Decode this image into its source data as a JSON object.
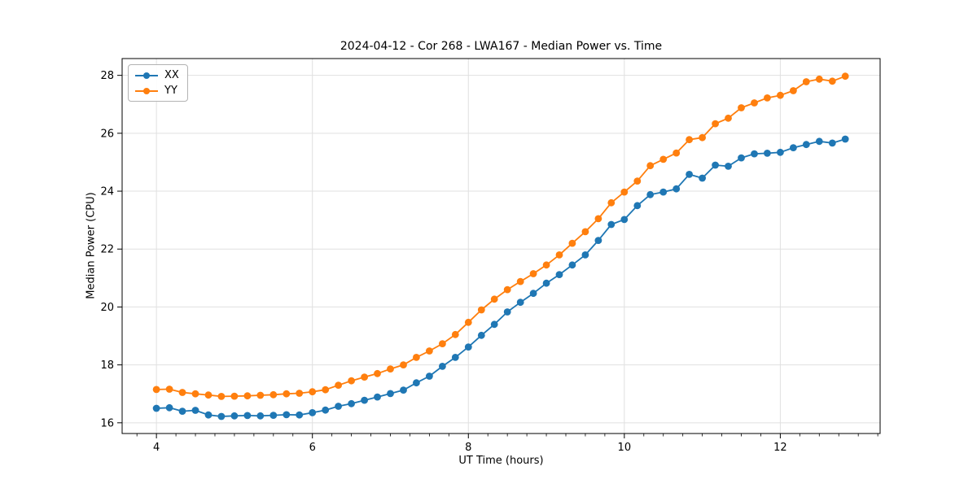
{
  "figure": {
    "background": "#ffffff"
  },
  "chart_data": {
    "type": "line",
    "title": "2024-04-12 - Cor 268 - LWA167 - Median Power vs. Time",
    "xlabel": "UT Time (hours)",
    "ylabel": "Median Power (CPU)",
    "xlim": [
      3.56,
      13.28
    ],
    "ylim": [
      15.63,
      28.58
    ],
    "x_ticks": [
      4,
      6,
      8,
      10,
      12
    ],
    "x_minor_tick_step": 0.25,
    "y_ticks": [
      16,
      18,
      20,
      22,
      24,
      26,
      28
    ],
    "grid": true,
    "grid_color": "#e0e0e0",
    "spine_color": "#000000",
    "text_color": "#000000",
    "legend_position": "upper-left",
    "x": [
      4,
      4.167,
      4.333,
      4.5,
      4.667,
      4.833,
      5,
      5.167,
      5.333,
      5.5,
      5.667,
      5.833,
      6,
      6.167,
      6.333,
      6.5,
      6.667,
      6.833,
      7,
      7.167,
      7.333,
      7.5,
      7.667,
      7.833,
      8,
      8.167,
      8.333,
      8.5,
      8.667,
      8.833,
      9,
      9.167,
      9.333,
      9.5,
      9.667,
      9.833,
      10,
      10.167,
      10.333,
      10.5,
      10.667,
      10.833,
      11,
      11.167,
      11.333,
      11.5,
      11.667,
      11.833,
      12,
      12.167,
      12.333,
      12.5,
      12.667,
      12.833
    ],
    "series": [
      {
        "name": "XX",
        "color": "#1f77b4",
        "marker": "circle",
        "values": [
          16.5,
          16.52,
          16.4,
          16.43,
          16.27,
          16.22,
          16.24,
          16.25,
          16.24,
          16.26,
          16.28,
          16.27,
          16.35,
          16.44,
          16.57,
          16.66,
          16.78,
          16.89,
          17.01,
          17.13,
          17.38,
          17.61,
          17.95,
          18.26,
          18.62,
          19.02,
          19.4,
          19.83,
          20.16,
          20.47,
          20.82,
          21.12,
          21.45,
          21.8,
          22.3,
          22.85,
          23.02,
          23.5,
          23.88,
          23.97,
          24.08,
          24.58,
          24.45,
          24.9,
          24.86,
          25.15,
          25.29,
          25.31,
          25.34,
          25.5,
          25.61,
          25.72,
          25.66,
          25.8
        ]
      },
      {
        "name": "YY",
        "color": "#ff7f0e",
        "marker": "circle",
        "values": [
          17.15,
          17.16,
          17.05,
          17.0,
          16.96,
          16.91,
          16.92,
          16.93,
          16.95,
          16.97,
          17.0,
          17.02,
          17.07,
          17.14,
          17.3,
          17.45,
          17.58,
          17.7,
          17.86,
          18.0,
          18.26,
          18.48,
          18.73,
          19.05,
          19.47,
          19.9,
          20.27,
          20.6,
          20.88,
          21.15,
          21.45,
          21.8,
          22.2,
          22.6,
          23.05,
          23.6,
          23.97,
          24.35,
          24.88,
          25.1,
          25.32,
          25.78,
          25.85,
          26.33,
          26.52,
          26.88,
          27.05,
          27.22,
          27.31,
          27.47,
          27.78,
          27.87,
          27.8,
          27.97
        ]
      }
    ]
  }
}
